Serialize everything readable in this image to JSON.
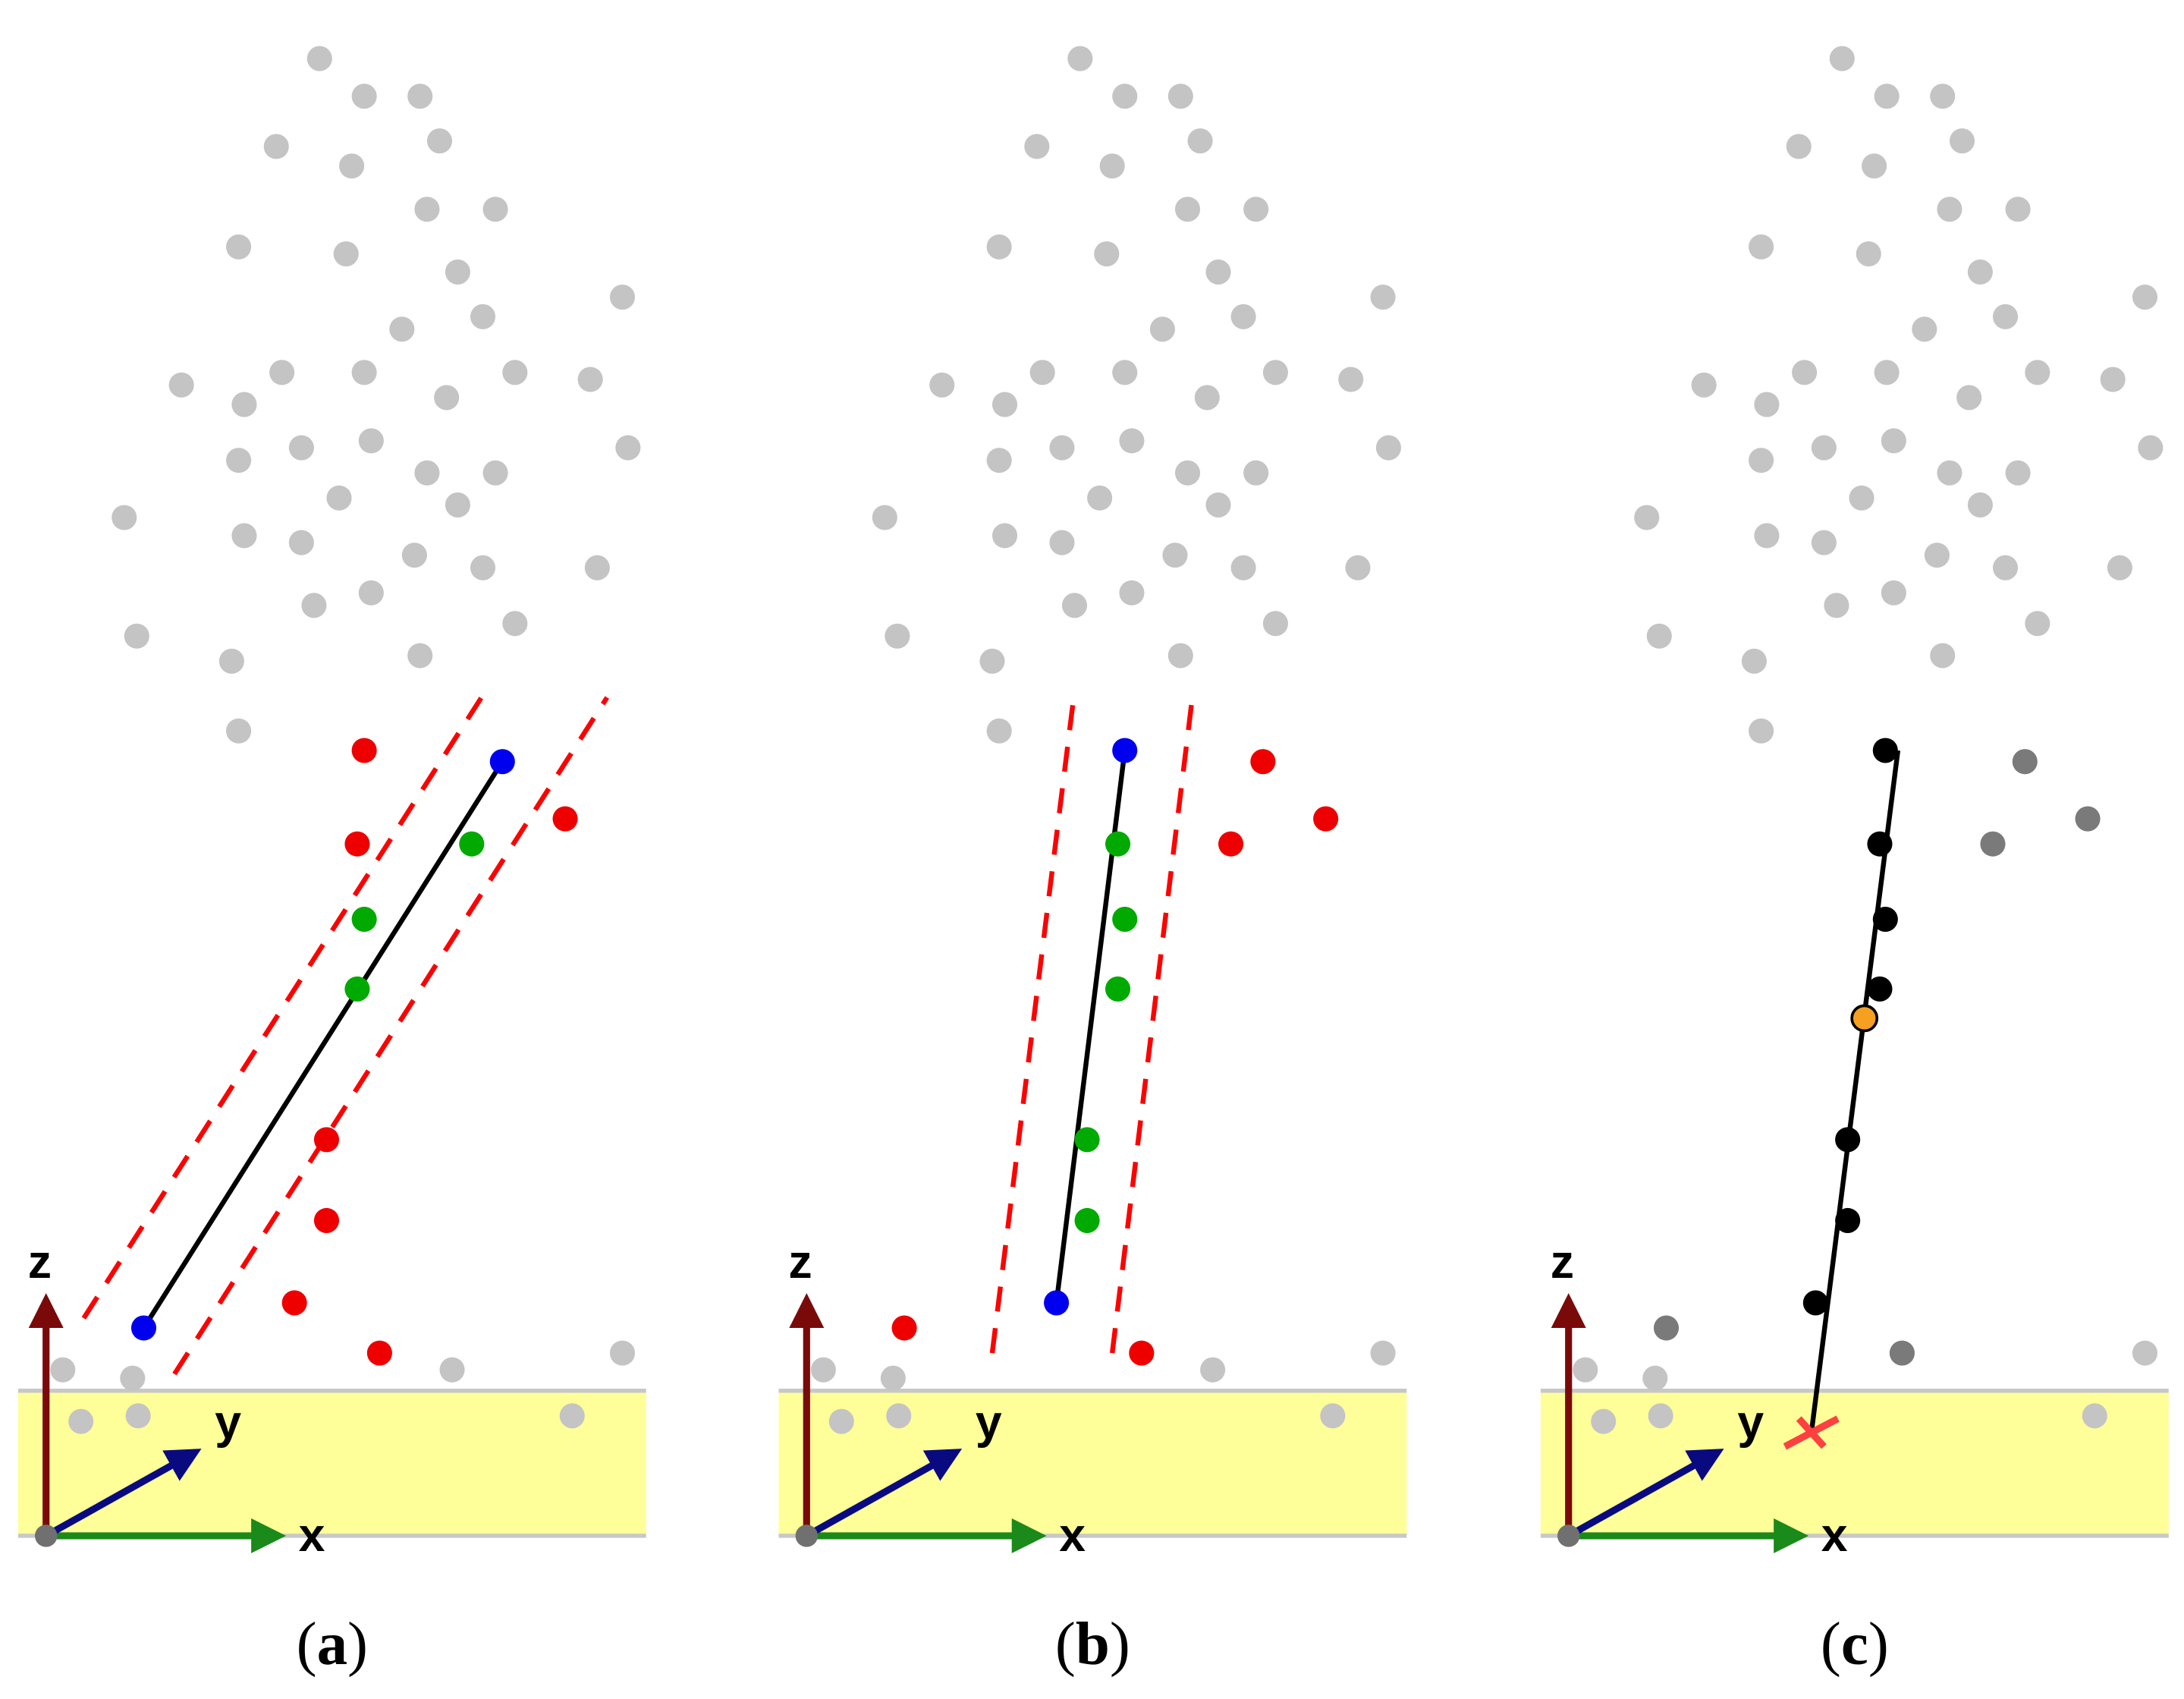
{
  "panels": [
    {
      "id": "a",
      "caption_open": "(",
      "caption_letter": "a",
      "caption_close": ")",
      "axes": {
        "x": "x",
        "y": "y",
        "z": "z"
      },
      "cloud_color": "#c4c4c4",
      "track": {
        "line_color": "#000000",
        "band_color": "#ff0000",
        "band_dashed": true
      },
      "seeds_color": "#0000ee",
      "inliers_color": "#00aa00",
      "outliers_color": "#ee0000",
      "surface_color": "#ffff99"
    },
    {
      "id": "b",
      "caption_open": "(",
      "caption_letter": "b",
      "caption_close": ")",
      "axes": {
        "x": "x",
        "y": "y",
        "z": "z"
      },
      "cloud_color": "#c4c4c4",
      "track": {
        "line_color": "#000000",
        "band_color": "#ff0000",
        "band_dashed": true
      },
      "seeds_color": "#0000ee",
      "inliers_color": "#00aa00",
      "outliers_color": "#ee0000",
      "surface_color": "#ffff99"
    },
    {
      "id": "c",
      "caption_open": "(",
      "caption_letter": "c",
      "caption_close": ")",
      "axes": {
        "x": "x",
        "y": "y",
        "z": "z"
      },
      "cloud_color": "#c4c4c4",
      "fitted_points_color": "#000000",
      "rejected_points_color": "#7a7a7a",
      "center_point_color": "#f5a020",
      "intersection_marker": "cross",
      "intersection_color": "#ff4040",
      "surface_color": "#ffff99"
    }
  ],
  "axis_colors": {
    "x": "#1a8a1a",
    "y": "#0a0a80",
    "z": "#7a0a0a",
    "origin": "#707070"
  }
}
